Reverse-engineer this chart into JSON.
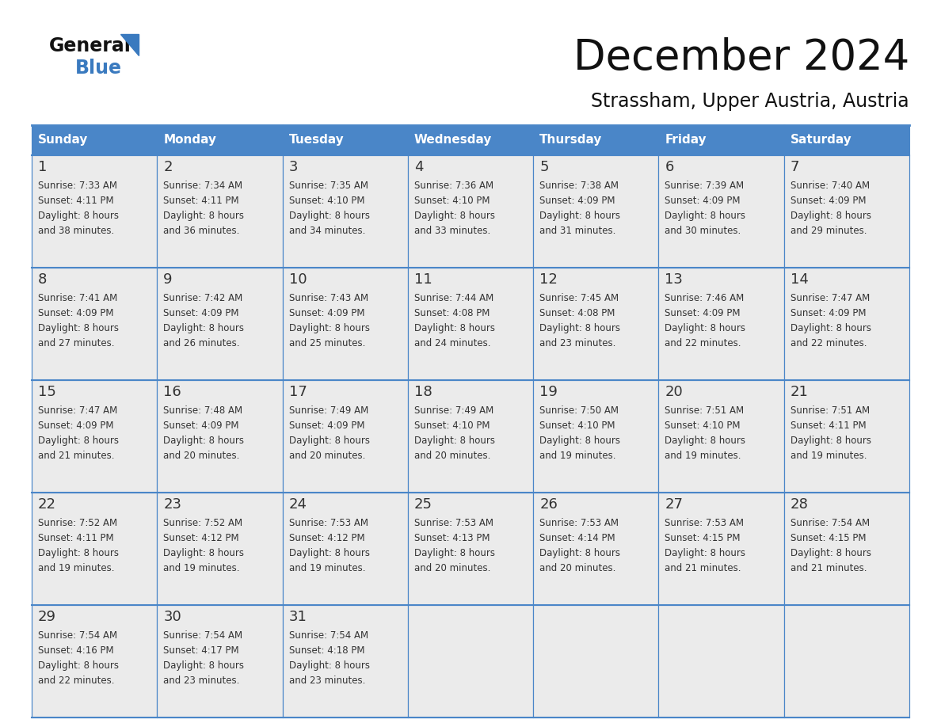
{
  "title": "December 2024",
  "subtitle": "Strassham, Upper Austria, Austria",
  "header_color": "#4a86c8",
  "header_text_color": "#ffffff",
  "cell_border_color": "#4a86c8",
  "day_number_color": "#333333",
  "text_color": "#333333",
  "background_color": "#ffffff",
  "cell_bg_color": "#f0f4f8",
  "days_of_week": [
    "Sunday",
    "Monday",
    "Tuesday",
    "Wednesday",
    "Thursday",
    "Friday",
    "Saturday"
  ],
  "calendar_data": [
    [
      {
        "day": 1,
        "sunrise": "7:33 AM",
        "sunset": "4:11 PM",
        "daylight": "8 hours and 38 minutes."
      },
      {
        "day": 2,
        "sunrise": "7:34 AM",
        "sunset": "4:11 PM",
        "daylight": "8 hours and 36 minutes."
      },
      {
        "day": 3,
        "sunrise": "7:35 AM",
        "sunset": "4:10 PM",
        "daylight": "8 hours and 34 minutes."
      },
      {
        "day": 4,
        "sunrise": "7:36 AM",
        "sunset": "4:10 PM",
        "daylight": "8 hours and 33 minutes."
      },
      {
        "day": 5,
        "sunrise": "7:38 AM",
        "sunset": "4:09 PM",
        "daylight": "8 hours and 31 minutes."
      },
      {
        "day": 6,
        "sunrise": "7:39 AM",
        "sunset": "4:09 PM",
        "daylight": "8 hours and 30 minutes."
      },
      {
        "day": 7,
        "sunrise": "7:40 AM",
        "sunset": "4:09 PM",
        "daylight": "8 hours and 29 minutes."
      }
    ],
    [
      {
        "day": 8,
        "sunrise": "7:41 AM",
        "sunset": "4:09 PM",
        "daylight": "8 hours and 27 minutes."
      },
      {
        "day": 9,
        "sunrise": "7:42 AM",
        "sunset": "4:09 PM",
        "daylight": "8 hours and 26 minutes."
      },
      {
        "day": 10,
        "sunrise": "7:43 AM",
        "sunset": "4:09 PM",
        "daylight": "8 hours and 25 minutes."
      },
      {
        "day": 11,
        "sunrise": "7:44 AM",
        "sunset": "4:08 PM",
        "daylight": "8 hours and 24 minutes."
      },
      {
        "day": 12,
        "sunrise": "7:45 AM",
        "sunset": "4:08 PM",
        "daylight": "8 hours and 23 minutes."
      },
      {
        "day": 13,
        "sunrise": "7:46 AM",
        "sunset": "4:09 PM",
        "daylight": "8 hours and 22 minutes."
      },
      {
        "day": 14,
        "sunrise": "7:47 AM",
        "sunset": "4:09 PM",
        "daylight": "8 hours and 22 minutes."
      }
    ],
    [
      {
        "day": 15,
        "sunrise": "7:47 AM",
        "sunset": "4:09 PM",
        "daylight": "8 hours and 21 minutes."
      },
      {
        "day": 16,
        "sunrise": "7:48 AM",
        "sunset": "4:09 PM",
        "daylight": "8 hours and 20 minutes."
      },
      {
        "day": 17,
        "sunrise": "7:49 AM",
        "sunset": "4:09 PM",
        "daylight": "8 hours and 20 minutes."
      },
      {
        "day": 18,
        "sunrise": "7:49 AM",
        "sunset": "4:10 PM",
        "daylight": "8 hours and 20 minutes."
      },
      {
        "day": 19,
        "sunrise": "7:50 AM",
        "sunset": "4:10 PM",
        "daylight": "8 hours and 19 minutes."
      },
      {
        "day": 20,
        "sunrise": "7:51 AM",
        "sunset": "4:10 PM",
        "daylight": "8 hours and 19 minutes."
      },
      {
        "day": 21,
        "sunrise": "7:51 AM",
        "sunset": "4:11 PM",
        "daylight": "8 hours and 19 minutes."
      }
    ],
    [
      {
        "day": 22,
        "sunrise": "7:52 AM",
        "sunset": "4:11 PM",
        "daylight": "8 hours and 19 minutes."
      },
      {
        "day": 23,
        "sunrise": "7:52 AM",
        "sunset": "4:12 PM",
        "daylight": "8 hours and 19 minutes."
      },
      {
        "day": 24,
        "sunrise": "7:53 AM",
        "sunset": "4:12 PM",
        "daylight": "8 hours and 19 minutes."
      },
      {
        "day": 25,
        "sunrise": "7:53 AM",
        "sunset": "4:13 PM",
        "daylight": "8 hours and 20 minutes."
      },
      {
        "day": 26,
        "sunrise": "7:53 AM",
        "sunset": "4:14 PM",
        "daylight": "8 hours and 20 minutes."
      },
      {
        "day": 27,
        "sunrise": "7:53 AM",
        "sunset": "4:15 PM",
        "daylight": "8 hours and 21 minutes."
      },
      {
        "day": 28,
        "sunrise": "7:54 AM",
        "sunset": "4:15 PM",
        "daylight": "8 hours and 21 minutes."
      }
    ],
    [
      {
        "day": 29,
        "sunrise": "7:54 AM",
        "sunset": "4:16 PM",
        "daylight": "8 hours and 22 minutes."
      },
      {
        "day": 30,
        "sunrise": "7:54 AM",
        "sunset": "4:17 PM",
        "daylight": "8 hours and 23 minutes."
      },
      {
        "day": 31,
        "sunrise": "7:54 AM",
        "sunset": "4:18 PM",
        "daylight": "8 hours and 23 minutes."
      },
      null,
      null,
      null,
      null
    ]
  ]
}
